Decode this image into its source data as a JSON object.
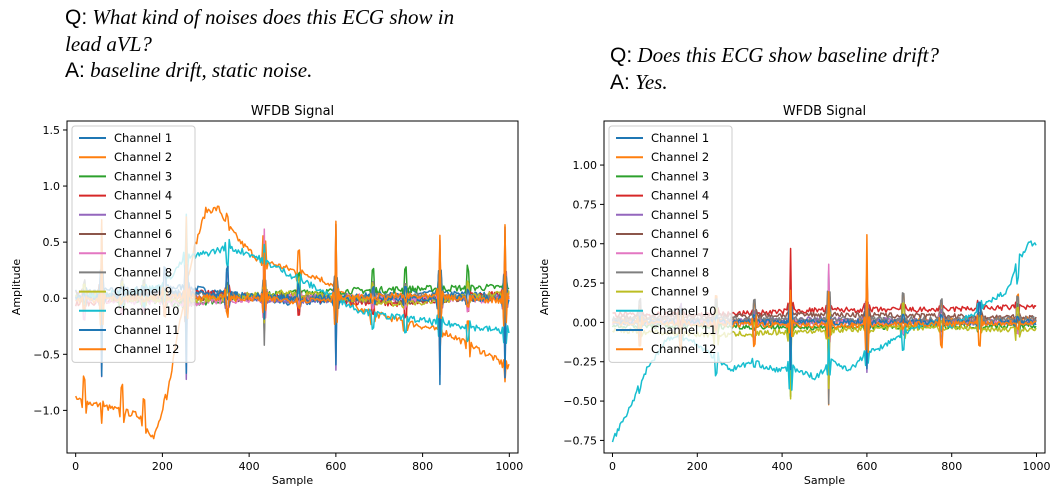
{
  "panels": [
    {
      "question_label": "Q:",
      "question": "What kind of noises does this ECG show in lead aVL?",
      "answer_label": "A:",
      "answer": "baseline drift, static noise."
    },
    {
      "question_label": "Q:",
      "question": "Does this ECG show baseline drift?",
      "answer_label": "A:",
      "answer": "Yes."
    }
  ],
  "chart_data": [
    {
      "type": "line",
      "title": "WFDB Signal",
      "xlabel": "Sample",
      "ylabel": "Amplitude",
      "xlim": [
        -20,
        1020
      ],
      "ylim": [
        -1.38,
        1.58
      ],
      "xticks": [
        0,
        200,
        400,
        600,
        800,
        1000
      ],
      "yticks": [
        -1.0,
        -0.5,
        0.0,
        0.5,
        1.0,
        1.5
      ],
      "ytick_labels": [
        "−1.0",
        "−0.5",
        "0.0",
        "0.5",
        "1.0",
        "1.5"
      ],
      "legend_position": "upper-left",
      "beats": [
        20,
        60,
        107,
        157,
        205,
        255,
        350,
        435,
        515,
        600,
        685,
        760,
        840,
        905,
        990
      ],
      "series": [
        {
          "name": "Channel 1",
          "color": "#1f77b4",
          "points": [
            [
              0,
              0.05
            ],
            [
              250,
              0.1
            ],
            [
              500,
              -0.05
            ],
            [
              750,
              0.05
            ],
            [
              1000,
              0.02
            ]
          ]
        },
        {
          "name": "Channel 2",
          "color": "#ff7f0e",
          "points": [
            [
              0,
              -0.9
            ],
            [
              50,
              -0.95
            ],
            [
              100,
              -1.0
            ],
            [
              150,
              -1.05
            ],
            [
              180,
              -1.25
            ],
            [
              210,
              -0.9
            ],
            [
              240,
              -0.2
            ],
            [
              270,
              0.4
            ],
            [
              300,
              0.78
            ],
            [
              330,
              0.8
            ],
            [
              350,
              0.65
            ],
            [
              380,
              0.5
            ],
            [
              420,
              0.35
            ],
            [
              460,
              0.3
            ],
            [
              500,
              0.25
            ],
            [
              550,
              0.2
            ],
            [
              600,
              0.1
            ],
            [
              650,
              -0.1
            ],
            [
              700,
              -0.15
            ],
            [
              750,
              -0.2
            ],
            [
              800,
              -0.25
            ],
            [
              850,
              -0.3
            ],
            [
              900,
              -0.4
            ],
            [
              950,
              -0.5
            ],
            [
              1000,
              -0.62
            ]
          ]
        },
        {
          "name": "Channel 3",
          "color": "#2ca02c",
          "points": [
            [
              0,
              0.02
            ],
            [
              250,
              -0.05
            ],
            [
              500,
              0.05
            ],
            [
              750,
              0.08
            ],
            [
              1000,
              0.1
            ]
          ]
        },
        {
          "name": "Channel 4",
          "color": "#d62728",
          "points": [
            [
              0,
              -0.05
            ],
            [
              250,
              0.05
            ],
            [
              500,
              0.0
            ],
            [
              750,
              -0.05
            ],
            [
              1000,
              0.05
            ]
          ]
        },
        {
          "name": "Channel 5",
          "color": "#9467bd",
          "points": [
            [
              0,
              0.0
            ],
            [
              250,
              0.02
            ],
            [
              500,
              -0.02
            ],
            [
              750,
              0.0
            ],
            [
              1000,
              0.0
            ]
          ]
        },
        {
          "name": "Channel 6",
          "color": "#8c564b",
          "points": [
            [
              0,
              0.05
            ],
            [
              250,
              -0.02
            ],
            [
              500,
              0.02
            ],
            [
              750,
              -0.03
            ],
            [
              1000,
              0.02
            ]
          ]
        },
        {
          "name": "Channel 7",
          "color": "#e377c2",
          "points": [
            [
              0,
              0.0
            ],
            [
              250,
              -0.05
            ],
            [
              500,
              0.02
            ],
            [
              750,
              0.0
            ],
            [
              1000,
              -0.02
            ]
          ]
        },
        {
          "name": "Channel 8",
          "color": "#7f7f7f",
          "points": [
            [
              0,
              0.0
            ],
            [
              250,
              0.05
            ],
            [
              500,
              0.0
            ],
            [
              750,
              0.02
            ],
            [
              1000,
              0.0
            ]
          ]
        },
        {
          "name": "Channel 9",
          "color": "#bcbd22",
          "points": [
            [
              0,
              0.02
            ],
            [
              250,
              -0.02
            ],
            [
              500,
              0.05
            ],
            [
              750,
              -0.05
            ],
            [
              1000,
              0.05
            ]
          ]
        },
        {
          "name": "Channel 10",
          "color": "#17becf",
          "points": [
            [
              0,
              0.0
            ],
            [
              200,
              0.1
            ],
            [
              250,
              0.35
            ],
            [
              300,
              0.4
            ],
            [
              350,
              0.45
            ],
            [
              400,
              0.4
            ],
            [
              450,
              0.3
            ],
            [
              500,
              0.2
            ],
            [
              550,
              0.1
            ],
            [
              600,
              0.0
            ],
            [
              650,
              -0.1
            ],
            [
              700,
              -0.15
            ],
            [
              800,
              -0.2
            ],
            [
              900,
              -0.25
            ],
            [
              1000,
              -0.3
            ]
          ]
        },
        {
          "name": "Channel 11",
          "color": "#1f77b4",
          "points": [
            [
              0,
              0.0
            ],
            [
              250,
              0.05
            ],
            [
              500,
              0.0
            ],
            [
              750,
              0.0
            ],
            [
              1000,
              0.0
            ]
          ]
        },
        {
          "name": "Channel 12",
          "color": "#ff7f0e",
          "points": [
            [
              0,
              -0.02
            ],
            [
              250,
              0.02
            ],
            [
              500,
              -0.02
            ],
            [
              750,
              0.02
            ],
            [
              1000,
              -0.02
            ]
          ]
        }
      ]
    },
    {
      "type": "line",
      "title": "WFDB Signal",
      "xlabel": "Sample",
      "ylabel": "Amplitude",
      "xlim": [
        -20,
        1020
      ],
      "ylim": [
        -0.83,
        1.28
      ],
      "xticks": [
        0,
        200,
        400,
        600,
        800,
        1000
      ],
      "yticks": [
        -0.75,
        -0.5,
        -0.25,
        0.0,
        0.25,
        0.5,
        0.75,
        1.0
      ],
      "ytick_labels": [
        "−0.75",
        "−0.50",
        "−0.25",
        "0.00",
        "0.25",
        "0.50",
        "0.75",
        "1.00"
      ],
      "legend_position": "upper-left",
      "beats": [
        65,
        160,
        245,
        335,
        420,
        510,
        600,
        685,
        775,
        865,
        955
      ],
      "series": [
        {
          "name": "Channel 1",
          "color": "#1f77b4",
          "points": [
            [
              0,
              0.0
            ],
            [
              500,
              0.0
            ],
            [
              1000,
              0.0
            ]
          ]
        },
        {
          "name": "Channel 2",
          "color": "#ff7f0e",
          "points": [
            [
              0,
              0.02
            ],
            [
              500,
              0.0
            ],
            [
              1000,
              0.02
            ]
          ]
        },
        {
          "name": "Channel 3",
          "color": "#2ca02c",
          "points": [
            [
              0,
              -0.02
            ],
            [
              500,
              -0.03
            ],
            [
              1000,
              -0.02
            ]
          ]
        },
        {
          "name": "Channel 4",
          "color": "#d62728",
          "points": [
            [
              0,
              0.05
            ],
            [
              250,
              0.05
            ],
            [
              500,
              0.08
            ],
            [
              750,
              0.08
            ],
            [
              1000,
              0.1
            ]
          ]
        },
        {
          "name": "Channel 5",
          "color": "#9467bd",
          "points": [
            [
              0,
              0.0
            ],
            [
              500,
              0.02
            ],
            [
              1000,
              0.0
            ]
          ]
        },
        {
          "name": "Channel 6",
          "color": "#8c564b",
          "points": [
            [
              0,
              0.03
            ],
            [
              500,
              0.05
            ],
            [
              1000,
              0.03
            ]
          ]
        },
        {
          "name": "Channel 7",
          "color": "#e377c2",
          "points": [
            [
              0,
              0.0
            ],
            [
              500,
              0.0
            ],
            [
              1000,
              0.0
            ]
          ]
        },
        {
          "name": "Channel 8",
          "color": "#7f7f7f",
          "points": [
            [
              0,
              0.02
            ],
            [
              500,
              0.02
            ],
            [
              1000,
              0.02
            ]
          ]
        },
        {
          "name": "Channel 9",
          "color": "#bcbd22",
          "points": [
            [
              0,
              -0.05
            ],
            [
              250,
              -0.08
            ],
            [
              500,
              -0.05
            ],
            [
              750,
              -0.03
            ],
            [
              1000,
              -0.05
            ]
          ]
        },
        {
          "name": "Channel 10",
          "color": "#17becf",
          "points": [
            [
              0,
              -0.75
            ],
            [
              40,
              -0.55
            ],
            [
              80,
              -0.3
            ],
            [
              130,
              -0.1
            ],
            [
              180,
              -0.1
            ],
            [
              230,
              -0.2
            ],
            [
              280,
              -0.3
            ],
            [
              330,
              -0.25
            ],
            [
              380,
              -0.3
            ],
            [
              430,
              -0.3
            ],
            [
              480,
              -0.35
            ],
            [
              520,
              -0.25
            ],
            [
              560,
              -0.3
            ],
            [
              600,
              -0.2
            ],
            [
              640,
              -0.15
            ],
            [
              700,
              -0.05
            ],
            [
              760,
              0.0
            ],
            [
              800,
              -0.02
            ],
            [
              850,
              0.05
            ],
            [
              900,
              0.15
            ],
            [
              930,
              0.2
            ],
            [
              960,
              0.4
            ],
            [
              980,
              0.5
            ],
            [
              1000,
              0.5
            ]
          ]
        },
        {
          "name": "Channel 11",
          "color": "#1f77b4",
          "points": [
            [
              0,
              0.0
            ],
            [
              500,
              0.0
            ],
            [
              1000,
              0.0
            ]
          ]
        },
        {
          "name": "Channel 12",
          "color": "#ff7f0e",
          "points": [
            [
              0,
              0.0
            ],
            [
              500,
              -0.02
            ],
            [
              1000,
              0.0
            ]
          ]
        }
      ]
    }
  ]
}
